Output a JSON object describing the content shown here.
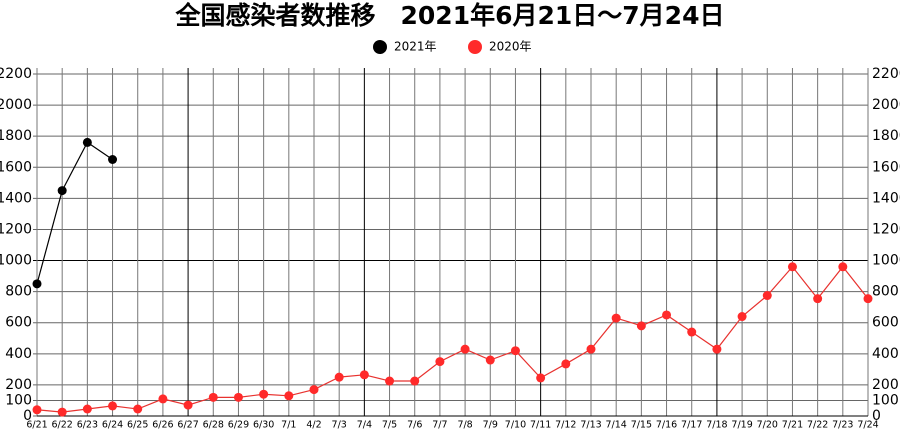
{
  "chart_data": {
    "type": "line",
    "title": "全国感染者数推移　2021年6月21日～7月24日",
    "categories": [
      "6/21",
      "6/22",
      "6/23",
      "6/24",
      "6/25",
      "6/26",
      "6/27",
      "6/28",
      "6/29",
      "6/30",
      "7/1",
      "4/2",
      "7/3",
      "7/4",
      "7/5",
      "7/6",
      "7/7",
      "7/8",
      "7/9",
      "7/10",
      "7/11",
      "7/12",
      "7/13",
      "7/14",
      "7/15",
      "7/16",
      "7/17",
      "7/18",
      "7/19",
      "7/20",
      "7/21",
      "7/22",
      "7/23",
      "7/24"
    ],
    "series": [
      {
        "name": "2021年",
        "color": "#000000",
        "values": [
          850,
          1450,
          1760,
          1650,
          null,
          null,
          null,
          null,
          null,
          null,
          null,
          null,
          null,
          null,
          null,
          null,
          null,
          null,
          null,
          null,
          null,
          null,
          null,
          null,
          null,
          null,
          null,
          null,
          null,
          null,
          null,
          null,
          null,
          null
        ]
      },
      {
        "name": "2020年",
        "color": "#e8322f",
        "values": [
          40,
          25,
          45,
          65,
          45,
          110,
          70,
          120,
          120,
          140,
          130,
          170,
          250,
          265,
          225,
          225,
          350,
          430,
          360,
          420,
          245,
          335,
          430,
          630,
          580,
          650,
          540,
          430,
          640,
          775,
          960,
          755,
          960,
          755
        ]
      }
    ],
    "ylim": [
      0,
      2200
    ],
    "yticks": [
      0,
      100,
      200,
      400,
      600,
      800,
      1000,
      1200,
      1400,
      1600,
      1800,
      2000,
      2200
    ],
    "grid": true
  }
}
